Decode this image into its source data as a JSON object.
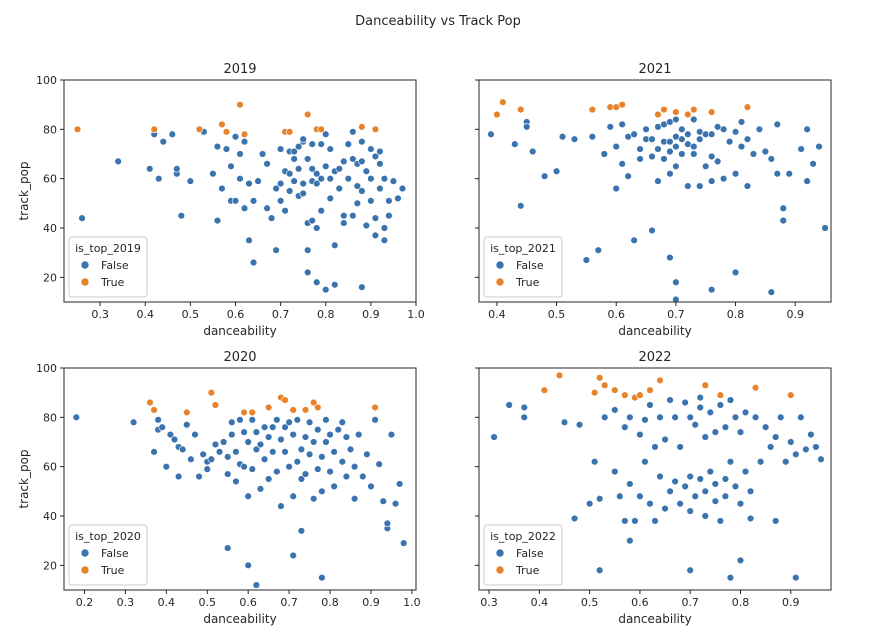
{
  "suptitle": "Danceability vs Track Pop",
  "colors": {
    "False": "#3a73ae",
    "True": "#e8822b"
  },
  "chart_data": [
    {
      "type": "scatter",
      "title": "2019",
      "xlabel": "danceability",
      "ylabel": "track_pop",
      "xlim": [
        0.22,
        1.0
      ],
      "ylim": [
        10,
        100
      ],
      "xticks": [
        0.3,
        0.4,
        0.5,
        0.6,
        0.7,
        0.8,
        0.9,
        1.0
      ],
      "xticklabels": [
        "0.3",
        "0.4",
        "0.5",
        "0.6",
        "0.7",
        "0.8",
        "0.9",
        "1.0"
      ],
      "yticks": [
        20,
        40,
        60,
        80,
        100
      ],
      "yticklabels": [
        "20",
        "40",
        "60",
        "80",
        "100"
      ],
      "legend": {
        "title": "is_top_2019",
        "labels": [
          "False",
          "True"
        ],
        "loc": "lower left"
      },
      "series": [
        {
          "name": "False",
          "x": [
            0.26,
            0.34,
            0.41,
            0.42,
            0.43,
            0.44,
            0.46,
            0.47,
            0.47,
            0.48,
            0.5,
            0.53,
            0.55,
            0.56,
            0.56,
            0.57,
            0.58,
            0.59,
            0.59,
            0.6,
            0.6,
            0.61,
            0.61,
            0.62,
            0.62,
            0.63,
            0.63,
            0.64,
            0.64,
            0.65,
            0.66,
            0.67,
            0.67,
            0.68,
            0.69,
            0.69,
            0.7,
            0.7,
            0.7,
            0.71,
            0.71,
            0.72,
            0.72,
            0.72,
            0.73,
            0.73,
            0.73,
            0.74,
            0.74,
            0.74,
            0.75,
            0.75,
            0.75,
            0.75,
            0.76,
            0.76,
            0.76,
            0.76,
            0.77,
            0.77,
            0.77,
            0.77,
            0.78,
            0.78,
            0.78,
            0.78,
            0.79,
            0.79,
            0.79,
            0.8,
            0.8,
            0.8,
            0.81,
            0.81,
            0.81,
            0.82,
            0.82,
            0.82,
            0.83,
            0.83,
            0.84,
            0.84,
            0.84,
            0.85,
            0.85,
            0.86,
            0.86,
            0.86,
            0.87,
            0.87,
            0.87,
            0.88,
            0.88,
            0.88,
            0.88,
            0.89,
            0.89,
            0.9,
            0.9,
            0.9,
            0.91,
            0.91,
            0.91,
            0.92,
            0.92,
            0.92,
            0.93,
            0.93,
            0.93,
            0.94,
            0.94,
            0.95,
            0.96,
            0.97
          ],
          "y": [
            44,
            67,
            64,
            78,
            60,
            75,
            78,
            62,
            64,
            45,
            59,
            79,
            62,
            43,
            73,
            56,
            72,
            51,
            65,
            51,
            77,
            60,
            70,
            48,
            75,
            58,
            35,
            51,
            26,
            59,
            70,
            66,
            48,
            44,
            56,
            31,
            72,
            58,
            51,
            63,
            47,
            71,
            55,
            62,
            68,
            59,
            71,
            53,
            64,
            73,
            58,
            75,
            76,
            54,
            31,
            42,
            22,
            68,
            43,
            64,
            59,
            74,
            18,
            58,
            40,
            62,
            60,
            47,
            74,
            15,
            65,
            78,
            52,
            72,
            60,
            17,
            33,
            63,
            56,
            64,
            67,
            42,
            45,
            74,
            60,
            79,
            68,
            45,
            57,
            66,
            50,
            67,
            55,
            75,
            16,
            41,
            63,
            60,
            72,
            51,
            37,
            69,
            44,
            66,
            56,
            71,
            35,
            60,
            40,
            51,
            45,
            59,
            52,
            56
          ]
        },
        {
          "name": "True",
          "x": [
            0.25,
            0.42,
            0.52,
            0.57,
            0.58,
            0.61,
            0.62,
            0.71,
            0.72,
            0.76,
            0.78,
            0.79,
            0.88,
            0.91
          ],
          "y": [
            80,
            80,
            80,
            82,
            79,
            90,
            78,
            79,
            79,
            86,
            80,
            80,
            81,
            80
          ]
        }
      ]
    },
    {
      "type": "scatter",
      "title": "2021",
      "xlabel": "danceability",
      "ylabel": "",
      "xlim": [
        0.37,
        0.96
      ],
      "ylim": [
        10,
        100
      ],
      "xticks": [
        0.4,
        0.5,
        0.6,
        0.7,
        0.8,
        0.9
      ],
      "xticklabels": [
        "0.4",
        "0.5",
        "0.6",
        "0.7",
        "0.8",
        "0.9"
      ],
      "yticks": [
        20,
        40,
        60,
        80,
        100
      ],
      "yticklabels": [
        "",
        "",
        "",
        "",
        ""
      ],
      "legend": {
        "title": "is_top_2021",
        "labels": [
          "False",
          "True"
        ],
        "loc": "lower left"
      },
      "series": [
        {
          "name": "False",
          "x": [
            0.39,
            0.43,
            0.44,
            0.45,
            0.45,
            0.46,
            0.48,
            0.5,
            0.51,
            0.53,
            0.55,
            0.56,
            0.57,
            0.58,
            0.59,
            0.6,
            0.6,
            0.61,
            0.61,
            0.62,
            0.62,
            0.63,
            0.63,
            0.64,
            0.64,
            0.65,
            0.65,
            0.66,
            0.66,
            0.66,
            0.67,
            0.67,
            0.67,
            0.68,
            0.68,
            0.68,
            0.69,
            0.69,
            0.69,
            0.69,
            0.7,
            0.7,
            0.7,
            0.7,
            0.71,
            0.71,
            0.71,
            0.72,
            0.72,
            0.72,
            0.73,
            0.73,
            0.73,
            0.74,
            0.74,
            0.74,
            0.75,
            0.75,
            0.76,
            0.76,
            0.76,
            0.77,
            0.77,
            0.78,
            0.78,
            0.79,
            0.8,
            0.8,
            0.81,
            0.81,
            0.82,
            0.82,
            0.83,
            0.84,
            0.85,
            0.86,
            0.87,
            0.87,
            0.88,
            0.88,
            0.89,
            0.91,
            0.92,
            0.92,
            0.93,
            0.94,
            0.95,
            0.69,
            0.7,
            0.7,
            0.76,
            0.8,
            0.86
          ],
          "y": [
            78,
            74,
            49,
            83,
            81,
            71,
            61,
            63,
            77,
            76,
            27,
            77,
            31,
            70,
            81,
            56,
            73,
            82,
            66,
            61,
            77,
            78,
            35,
            72,
            68,
            80,
            76,
            76,
            39,
            69,
            59,
            72,
            81,
            68,
            75,
            82,
            83,
            71,
            75,
            62,
            77,
            73,
            65,
            84,
            70,
            76,
            80,
            78,
            57,
            74,
            73,
            84,
            70,
            79,
            57,
            76,
            65,
            78,
            78,
            59,
            69,
            67,
            81,
            80,
            60,
            75,
            62,
            79,
            83,
            73,
            57,
            76,
            70,
            80,
            71,
            68,
            82,
            62,
            48,
            43,
            62,
            72,
            59,
            80,
            66,
            73,
            40,
            28,
            18,
            11,
            15,
            22,
            14
          ]
        },
        {
          "name": "True",
          "x": [
            0.4,
            0.41,
            0.44,
            0.56,
            0.59,
            0.6,
            0.61,
            0.67,
            0.68,
            0.7,
            0.72,
            0.73,
            0.76,
            0.82
          ],
          "y": [
            86,
            91,
            88,
            88,
            89,
            89,
            90,
            86,
            88,
            87,
            86,
            88,
            87,
            89
          ]
        }
      ]
    },
    {
      "type": "scatter",
      "title": "2020",
      "xlabel": "danceability",
      "ylabel": "track_pop",
      "xlim": [
        0.15,
        1.01
      ],
      "ylim": [
        10,
        100
      ],
      "xticks": [
        0.2,
        0.3,
        0.4,
        0.5,
        0.6,
        0.7,
        0.8,
        0.9,
        1.0
      ],
      "xticklabels": [
        "0.2",
        "0.3",
        "0.4",
        "0.5",
        "0.6",
        "0.7",
        "0.8",
        "0.9",
        "1.0"
      ],
      "yticks": [
        20,
        40,
        60,
        80,
        100
      ],
      "yticklabels": [
        "20",
        "40",
        "60",
        "80",
        "100"
      ],
      "legend": {
        "title": "is_top_2020",
        "labels": [
          "False",
          "True"
        ],
        "loc": "lower left"
      },
      "series": [
        {
          "name": "False",
          "x": [
            0.18,
            0.32,
            0.37,
            0.38,
            0.38,
            0.39,
            0.4,
            0.41,
            0.42,
            0.43,
            0.43,
            0.44,
            0.45,
            0.46,
            0.47,
            0.48,
            0.49,
            0.5,
            0.5,
            0.51,
            0.52,
            0.53,
            0.54,
            0.55,
            0.55,
            0.56,
            0.56,
            0.57,
            0.57,
            0.58,
            0.58,
            0.59,
            0.59,
            0.6,
            0.6,
            0.61,
            0.61,
            0.62,
            0.62,
            0.63,
            0.63,
            0.64,
            0.64,
            0.65,
            0.65,
            0.66,
            0.66,
            0.67,
            0.67,
            0.68,
            0.68,
            0.69,
            0.69,
            0.7,
            0.7,
            0.71,
            0.71,
            0.72,
            0.72,
            0.73,
            0.73,
            0.74,
            0.74,
            0.75,
            0.75,
            0.76,
            0.76,
            0.77,
            0.77,
            0.78,
            0.78,
            0.79,
            0.79,
            0.8,
            0.8,
            0.81,
            0.81,
            0.82,
            0.83,
            0.83,
            0.84,
            0.84,
            0.85,
            0.86,
            0.86,
            0.87,
            0.88,
            0.89,
            0.9,
            0.91,
            0.92,
            0.93,
            0.94,
            0.94,
            0.95,
            0.96,
            0.97,
            0.98,
            0.55,
            0.6,
            0.62,
            0.71,
            0.73,
            0.78
          ],
          "y": [
            80,
            78,
            66,
            75,
            79,
            76,
            60,
            73,
            71,
            68,
            56,
            67,
            77,
            63,
            73,
            56,
            65,
            62,
            59,
            63,
            69,
            66,
            70,
            57,
            64,
            73,
            78,
            54,
            66,
            61,
            79,
            60,
            74,
            48,
            70,
            79,
            59,
            67,
            74,
            69,
            51,
            63,
            76,
            72,
            55,
            66,
            76,
            58,
            79,
            44,
            71,
            66,
            76,
            60,
            78,
            48,
            73,
            62,
            79,
            67,
            55,
            72,
            57,
            78,
            65,
            47,
            70,
            59,
            75,
            64,
            50,
            70,
            79,
            58,
            73,
            66,
            52,
            75,
            62,
            78,
            56,
            72,
            67,
            47,
            60,
            73,
            56,
            65,
            52,
            79,
            61,
            46,
            35,
            37,
            73,
            45,
            53,
            29,
            27,
            20,
            12,
            24,
            34,
            15
          ]
        },
        {
          "name": "True",
          "x": [
            0.36,
            0.37,
            0.45,
            0.51,
            0.52,
            0.59,
            0.61,
            0.65,
            0.68,
            0.69,
            0.71,
            0.74,
            0.76,
            0.77,
            0.91
          ],
          "y": [
            86,
            83,
            82,
            90,
            85,
            82,
            82,
            84,
            88,
            87,
            83,
            83,
            86,
            84,
            84
          ]
        }
      ]
    },
    {
      "type": "scatter",
      "title": "2022",
      "xlabel": "danceability",
      "ylabel": "",
      "xlim": [
        0.28,
        0.98
      ],
      "ylim": [
        10,
        100
      ],
      "xticks": [
        0.3,
        0.4,
        0.5,
        0.6,
        0.7,
        0.8,
        0.9
      ],
      "xticklabels": [
        "0.3",
        "0.4",
        "0.5",
        "0.6",
        "0.7",
        "0.8",
        "0.9"
      ],
      "yticks": [
        20,
        40,
        60,
        80,
        100
      ],
      "yticklabels": [
        "",
        "",
        "",
        "",
        ""
      ],
      "legend": {
        "title": "is_top_2022",
        "labels": [
          "False",
          "True"
        ],
        "loc": "lower left"
      },
      "series": [
        {
          "name": "False",
          "x": [
            0.31,
            0.34,
            0.37,
            0.37,
            0.45,
            0.47,
            0.48,
            0.5,
            0.51,
            0.52,
            0.53,
            0.55,
            0.55,
            0.56,
            0.57,
            0.57,
            0.58,
            0.58,
            0.59,
            0.6,
            0.6,
            0.61,
            0.61,
            0.62,
            0.62,
            0.63,
            0.63,
            0.64,
            0.64,
            0.65,
            0.65,
            0.66,
            0.66,
            0.67,
            0.67,
            0.68,
            0.68,
            0.69,
            0.69,
            0.7,
            0.7,
            0.7,
            0.71,
            0.71,
            0.72,
            0.72,
            0.72,
            0.73,
            0.73,
            0.73,
            0.74,
            0.74,
            0.75,
            0.75,
            0.75,
            0.76,
            0.76,
            0.77,
            0.77,
            0.77,
            0.78,
            0.78,
            0.79,
            0.79,
            0.8,
            0.8,
            0.81,
            0.81,
            0.82,
            0.82,
            0.83,
            0.84,
            0.85,
            0.86,
            0.87,
            0.87,
            0.88,
            0.89,
            0.9,
            0.91,
            0.92,
            0.93,
            0.94,
            0.95,
            0.96,
            0.52,
            0.58,
            0.7,
            0.78,
            0.8,
            0.91
          ],
          "y": [
            72,
            85,
            84,
            80,
            78,
            39,
            77,
            45,
            62,
            47,
            80,
            58,
            83,
            48,
            76,
            38,
            80,
            53,
            38,
            73,
            48,
            79,
            62,
            45,
            85,
            68,
            38,
            56,
            80,
            43,
            71,
            87,
            50,
            54,
            80,
            45,
            68,
            86,
            52,
            42,
            80,
            56,
            77,
            48,
            84,
            55,
            88,
            50,
            72,
            40,
            58,
            82,
            46,
            74,
            53,
            85,
            38,
            55,
            76,
            48,
            87,
            62,
            52,
            80,
            45,
            74,
            58,
            82,
            50,
            39,
            80,
            62,
            76,
            68,
            38,
            72,
            80,
            62,
            70,
            65,
            80,
            67,
            73,
            68,
            63,
            18,
            30,
            18,
            15,
            22,
            15
          ]
        },
        {
          "name": "True",
          "x": [
            0.41,
            0.44,
            0.51,
            0.52,
            0.53,
            0.55,
            0.57,
            0.59,
            0.6,
            0.62,
            0.64,
            0.73,
            0.76,
            0.83,
            0.9
          ],
          "y": [
            91,
            97,
            90,
            96,
            93,
            91,
            89,
            88,
            89,
            91,
            95,
            93,
            89,
            92,
            89
          ]
        }
      ]
    }
  ]
}
